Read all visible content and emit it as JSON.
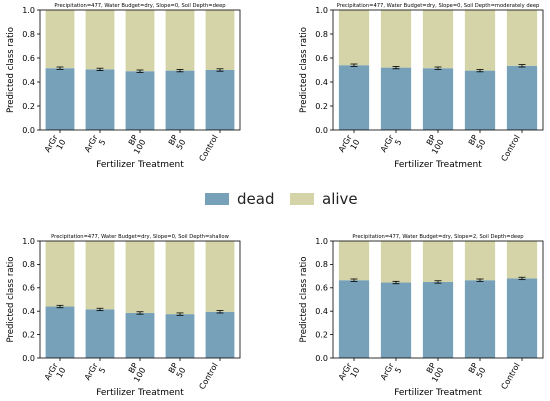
{
  "legend": {
    "dead_label": "dead",
    "alive_label": "alive"
  },
  "colors": {
    "dead": "#77a1b8",
    "alive": "#d4d4a8",
    "axis": "#000000",
    "errorbar": "#000000"
  },
  "chart_data": [
    {
      "type": "bar",
      "stacked": true,
      "title": "Precipitation=477, Water Budget=dry, Slope=0, Soil Depth=deep",
      "xlabel": "Fertilizer Treatment",
      "ylabel": "Predicted class ratio",
      "ylim": [
        0,
        1
      ],
      "yticks": [
        "0.0",
        "0.2",
        "0.4",
        "0.6",
        "0.8",
        "1.0"
      ],
      "categories": [
        "ArGr\n10",
        "ArGr\n5",
        "BP\n100",
        "BP\n50",
        "Control"
      ],
      "series": [
        {
          "name": "dead",
          "values": [
            0.515,
            0.505,
            0.49,
            0.495,
            0.5
          ]
        },
        {
          "name": "alive",
          "values": [
            0.485,
            0.495,
            0.51,
            0.505,
            0.5
          ]
        }
      ]
    },
    {
      "type": "bar",
      "stacked": true,
      "title": "Precipitation=477, Water Budget=dry, Slope=0, Soil Depth=moderately deep",
      "xlabel": "Fertilizer Treatment",
      "ylabel": "Predicted class ratio",
      "ylim": [
        0,
        1
      ],
      "yticks": [
        "0.0",
        "0.2",
        "0.4",
        "0.6",
        "0.8",
        "1.0"
      ],
      "categories": [
        "ArGr\n10",
        "ArGr\n5",
        "BP\n100",
        "BP\n50",
        "Control"
      ],
      "series": [
        {
          "name": "dead",
          "values": [
            0.54,
            0.52,
            0.515,
            0.495,
            0.535
          ]
        },
        {
          "name": "alive",
          "values": [
            0.46,
            0.48,
            0.485,
            0.505,
            0.465
          ]
        }
      ]
    },
    {
      "type": "bar",
      "stacked": true,
      "title": "Precipitation=477, Water Budget=dry, Slope=0, Soil Depth=shallow",
      "xlabel": "Fertilizer Treatment",
      "ylabel": "Predicted class ratio",
      "ylim": [
        0,
        1
      ],
      "yticks": [
        "0.0",
        "0.2",
        "0.4",
        "0.6",
        "0.8",
        "1.0"
      ],
      "categories": [
        "ArGr\n10",
        "ArGr\n5",
        "BP\n100",
        "BP\n50",
        "Control"
      ],
      "series": [
        {
          "name": "dead",
          "values": [
            0.44,
            0.415,
            0.385,
            0.375,
            0.395
          ]
        },
        {
          "name": "alive",
          "values": [
            0.56,
            0.585,
            0.615,
            0.625,
            0.605
          ]
        }
      ]
    },
    {
      "type": "bar",
      "stacked": true,
      "title": "Precipitation=477, Water Budget=dry, Slope=2, Soil Depth=deep",
      "xlabel": "Fertilizer Treatment",
      "ylabel": "Predicted class ratio",
      "ylim": [
        0,
        1
      ],
      "yticks": [
        "0.0",
        "0.2",
        "0.4",
        "0.6",
        "0.8",
        "1.0"
      ],
      "categories": [
        "ArGr\n10",
        "ArGr\n5",
        "BP\n100",
        "BP\n50",
        "Control"
      ],
      "series": [
        {
          "name": "dead",
          "values": [
            0.665,
            0.645,
            0.65,
            0.665,
            0.68
          ]
        },
        {
          "name": "alive",
          "values": [
            0.335,
            0.355,
            0.35,
            0.335,
            0.32
          ]
        }
      ]
    }
  ]
}
